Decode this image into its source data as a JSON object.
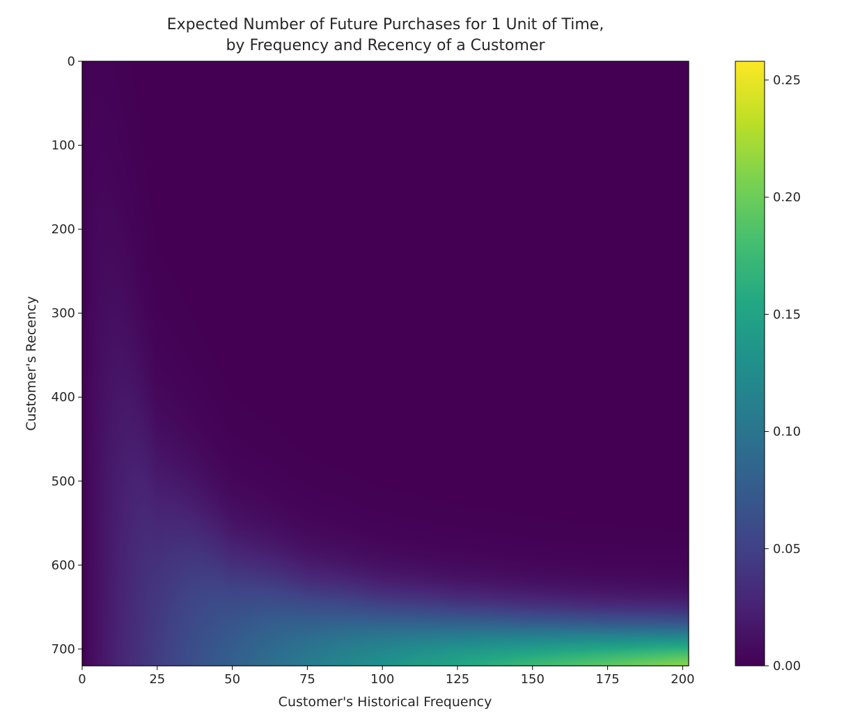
{
  "chart_data": {
    "type": "heatmap",
    "title_lines": [
      "Expected Number of Future Purchases for 1 Unit of Time,",
      "by Frequency and Recency of a Customer"
    ],
    "xlabel": "Customer's Historical Frequency",
    "ylabel": "Customer's Recency",
    "x_range": [
      0,
      202
    ],
    "y_range": [
      0,
      720
    ],
    "y_axis_inverted": true,
    "x_ticks": [
      0,
      25,
      50,
      75,
      100,
      125,
      150,
      175,
      200
    ],
    "y_ticks": [
      0,
      100,
      200,
      300,
      400,
      500,
      600,
      700
    ],
    "colormap": "viridis",
    "colorbar": {
      "range": [
        0,
        0.258
      ],
      "ticks": [
        0.0,
        0.05,
        0.1,
        0.15,
        0.2,
        0.25
      ],
      "tick_labels": [
        "0.00",
        "0.05",
        "0.10",
        "0.15",
        "0.20",
        "0.25"
      ]
    },
    "model": {
      "description_of_surface": "value rises with frequency and drops sharply when recency falls below a frequency-dependent boundary",
      "max_value": 0.258,
      "boundary_recency": [
        {
          "frequency": 5,
          "recency": 250
        },
        {
          "frequency": 25,
          "recency": 520
        },
        {
          "frequency": 50,
          "recency": 610
        },
        {
          "frequency": 75,
          "recency": 645
        },
        {
          "frequency": 100,
          "recency": 663
        },
        {
          "frequency": 125,
          "recency": 673
        },
        {
          "frequency": 150,
          "recency": 680
        },
        {
          "frequency": 175,
          "recency": 685
        },
        {
          "frequency": 200,
          "recency": 688
        }
      ],
      "max_frequency": 202,
      "max_recency": 720
    }
  }
}
